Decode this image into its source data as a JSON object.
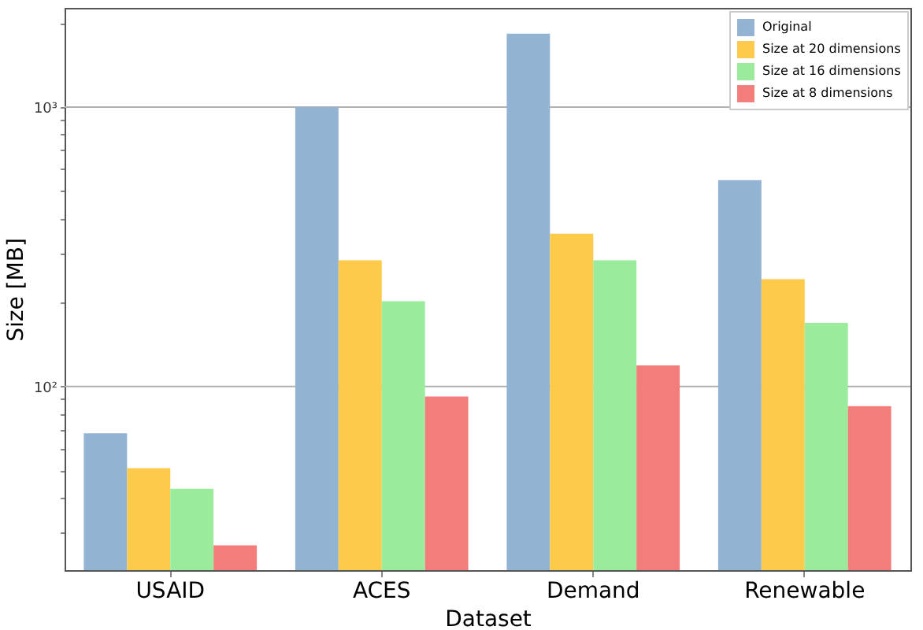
{
  "chart_data": {
    "type": "bar",
    "xlabel": "Dataset",
    "ylabel": "Size [MB]",
    "categories": [
      "USAID",
      "ACES",
      "Demand",
      "Renewable"
    ],
    "series": [
      {
        "name": "Original",
        "color": "#92b3d1",
        "values": [
          68,
          1000,
          1830,
          548
        ]
      },
      {
        "name": "Size at 20 dimensions",
        "color": "#fdca4a",
        "values": [
          51,
          283,
          352,
          242
        ]
      },
      {
        "name": "Size at 16 dimensions",
        "color": "#9aeb9c",
        "values": [
          43,
          202,
          283,
          169
        ]
      },
      {
        "name": "Size at 8 dimensions",
        "color": "#f37d7a",
        "values": [
          27,
          92,
          119,
          85
        ]
      }
    ],
    "log": "y",
    "ylim": [
      22,
      2265
    ],
    "yticks": [
      {
        "value": 30,
        "label": null
      },
      {
        "value": 40,
        "label": null
      },
      {
        "value": 50,
        "label": null
      },
      {
        "value": 60,
        "label": null
      },
      {
        "value": 70,
        "label": null
      },
      {
        "value": 80,
        "label": null
      },
      {
        "value": 90,
        "label": null
      },
      {
        "value": 100,
        "label": "10²"
      },
      {
        "value": 200,
        "label": null
      },
      {
        "value": 300,
        "label": null
      },
      {
        "value": 400,
        "label": null
      },
      {
        "value": 500,
        "label": null
      },
      {
        "value": 600,
        "label": null
      },
      {
        "value": 700,
        "label": null
      },
      {
        "value": 800,
        "label": null
      },
      {
        "value": 900,
        "label": null
      },
      {
        "value": 1000,
        "label": "10³"
      },
      {
        "value": 2000,
        "label": null
      }
    ],
    "grid": "y",
    "legend": "top right"
  }
}
